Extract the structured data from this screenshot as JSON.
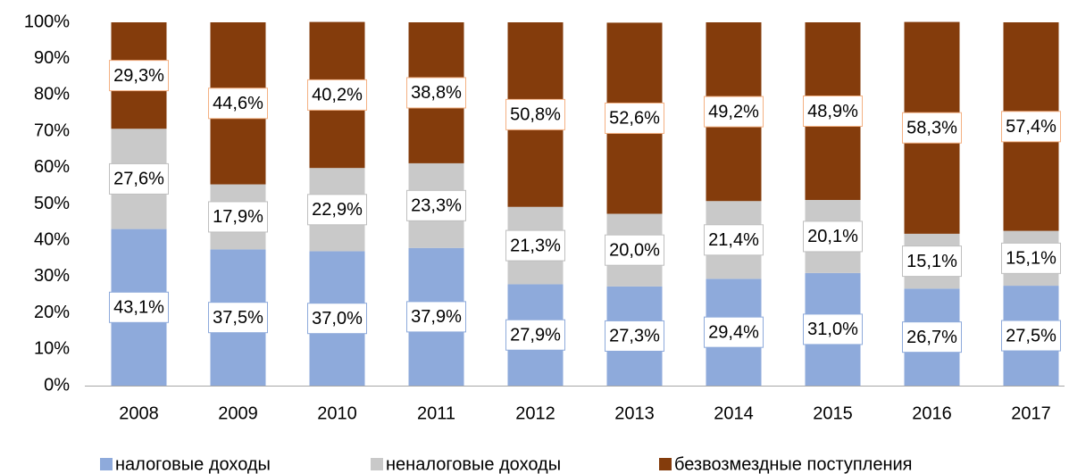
{
  "chart_data": {
    "type": "stacked_bar",
    "categories": [
      "2008",
      "2009",
      "2010",
      "2011",
      "2012",
      "2013",
      "2014",
      "2015",
      "2016",
      "2017"
    ],
    "series": [
      {
        "name": "налоговые доходы",
        "color": "#8eaadb",
        "label_border": "#8eaadb",
        "values": [
          43.1,
          37.5,
          37.0,
          37.9,
          27.9,
          27.3,
          29.4,
          31.0,
          26.7,
          27.5
        ],
        "value_labels": [
          "43,1%",
          "37,5%",
          "37,0%",
          "37,9%",
          "27,9%",
          "27,3%",
          "29,4%",
          "31,0%",
          "26,7%",
          "27,5%"
        ]
      },
      {
        "name": "неналоговые доходы",
        "color": "#c9c9c9",
        "label_border": "#bfbfbf",
        "values": [
          27.6,
          17.9,
          22.9,
          23.3,
          21.3,
          20.0,
          21.4,
          20.1,
          15.1,
          15.1
        ],
        "value_labels": [
          "27,6%",
          "17,9%",
          "22,9%",
          "23,3%",
          "21,3%",
          "20,0%",
          "21,4%",
          "20,1%",
          "15,1%",
          "15,1%"
        ]
      },
      {
        "name": "безвозмездные поступления",
        "color": "#843c0c",
        "label_border": "#f4b183",
        "values": [
          29.3,
          44.6,
          40.2,
          38.8,
          50.8,
          52.6,
          49.2,
          48.9,
          58.3,
          57.4
        ],
        "value_labels": [
          "29,3%",
          "44,6%",
          "40,2%",
          "38,8%",
          "50,8%",
          "52,6%",
          "49,2%",
          "48,9%",
          "58,3%",
          "57,4%"
        ]
      }
    ],
    "ylim": [
      0,
      100
    ],
    "yticks": [
      {
        "value": 0,
        "label": "0%"
      },
      {
        "value": 10,
        "label": "10%"
      },
      {
        "value": 20,
        "label": "20%"
      },
      {
        "value": 30,
        "label": "30%"
      },
      {
        "value": 40,
        "label": "40%"
      },
      {
        "value": 50,
        "label": "50%"
      },
      {
        "value": 60,
        "label": "60%"
      },
      {
        "value": 70,
        "label": "70%"
      },
      {
        "value": 80,
        "label": "80%"
      },
      {
        "value": 90,
        "label": "90%"
      },
      {
        "value": 100,
        "label": "100%"
      }
    ],
    "legend": "bottom"
  }
}
